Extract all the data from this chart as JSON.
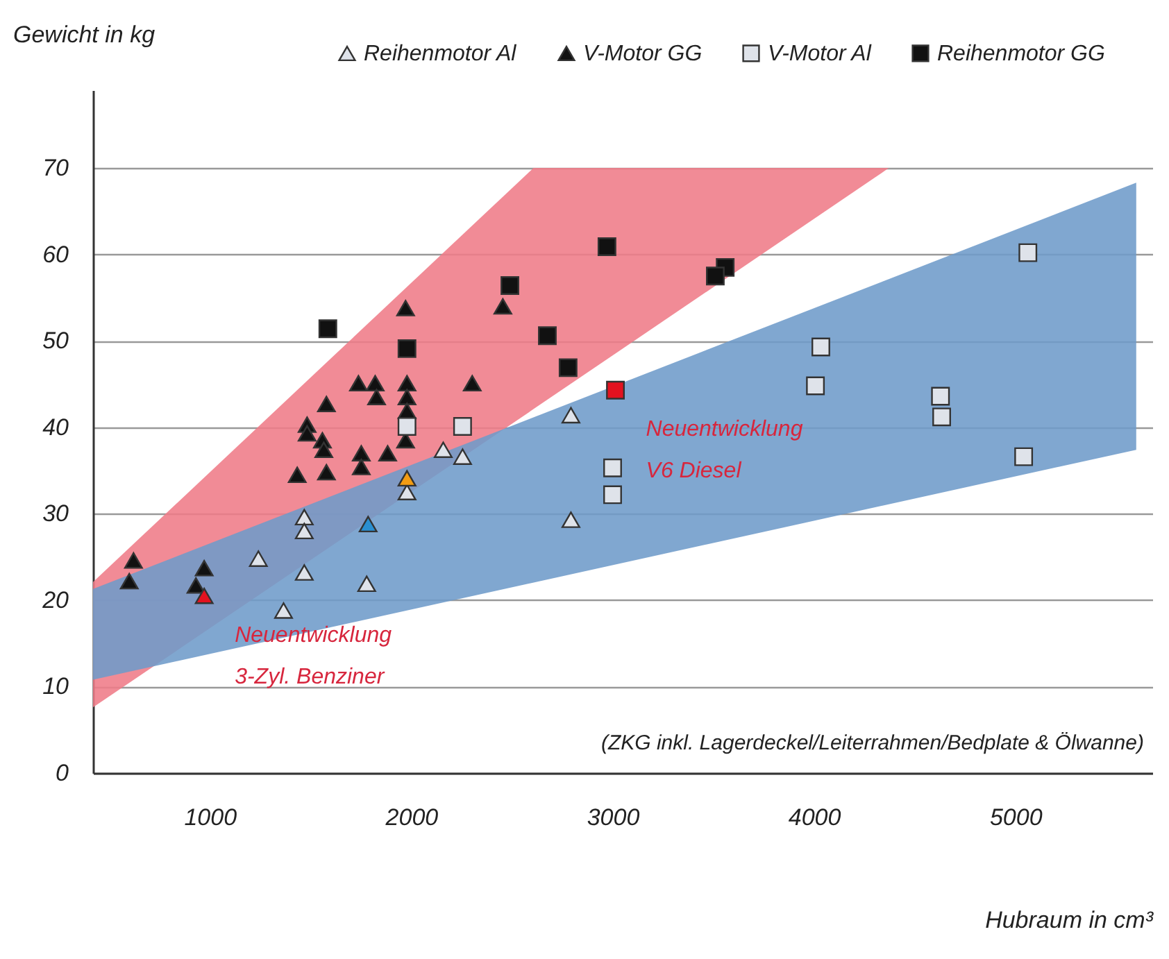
{
  "chart_data": {
    "type": "scatter",
    "xlabel": "Hubraum in cm³",
    "ylabel": "Gewicht in kg",
    "xlim": [
      420,
      5680
    ],
    "ylim": [
      0,
      79
    ],
    "xticks": [
      {
        "value": 1000,
        "label": "1000"
      },
      {
        "value": 2000,
        "label": "2000"
      },
      {
        "value": 3000,
        "label": "3000"
      },
      {
        "value": 4000,
        "label": "4000"
      },
      {
        "value": 5000,
        "label": "5000"
      }
    ],
    "yticks": [
      0,
      10,
      20,
      30,
      40,
      50,
      60,
      70
    ],
    "grid": "y",
    "legend": "top",
    "series": [
      {
        "type": "area",
        "color": "#ef7b88",
        "x": [
          420,
          2607,
          4372
        ],
        "values": [
          null,
          null,
          null
        ],
        "lower": [
          7.6,
          42.1,
          70
        ],
        "upper": [
          22.1,
          70,
          70
        ]
      },
      {
        "type": "area",
        "color": "#6e9bc9",
        "x": [
          420,
          5600
        ],
        "values": [
          null,
          null
        ],
        "lower": [
          10.8,
          37.4
        ],
        "upper": [
          21.3,
          68.3
        ]
      },
      {
        "name": "Reihenmotor Al",
        "color": "#dfe3ea",
        "marker": "triangle",
        "x": [
          2159,
          2255,
          1469,
          1469,
          1241,
          1469,
          1779,
          1366,
          1979,
          2793,
          2793
        ],
        "values": [
          37.4,
          36.6,
          29.6,
          28.0,
          24.8,
          23.2,
          21.9,
          18.8,
          32.5,
          41.4,
          29.3
        ]
      },
      {
        "name": "V-Motor GG",
        "color": "#111111",
        "marker": "triangle",
        "x": [
          1972,
          2455,
          1738,
          1821,
          1828,
          1979,
          1979,
          1979,
          2303,
          1579,
          1483,
          1483,
          1559,
          1566,
          1752,
          1752,
          1883,
          1972,
          1434,
          1579,
          621,
          600,
          972,
          931
        ],
        "values": [
          53.8,
          54.0,
          45.1,
          45.1,
          43.5,
          45.1,
          43.5,
          41.9,
          45.1,
          42.7,
          40.3,
          39.3,
          38.5,
          37.4,
          37.0,
          35.4,
          37.0,
          38.5,
          34.5,
          34.8,
          24.6,
          22.2,
          23.7,
          21.7
        ]
      },
      {
        "name": "V-Motor Al",
        "color": "#dfe3ea",
        "marker": "square",
        "x": [
          1979,
          2255,
          5062,
          4034,
          4007,
          4628,
          4634,
          5041,
          3000,
          3000
        ],
        "values": [
          40.1,
          40.1,
          60.2,
          49.3,
          44.8,
          43.6,
          41.2,
          36.6,
          35.3,
          32.2
        ]
      },
      {
        "name": "Reihenmotor GG",
        "color": "#111111",
        "marker": "square",
        "x": [
          1586,
          1979,
          2490,
          2972,
          3559,
          3510,
          2676,
          2779
        ],
        "values": [
          51.4,
          49.1,
          56.4,
          60.9,
          58.5,
          57.5,
          50.6,
          46.9
        ]
      },
      {
        "color": "#f39c12",
        "marker": "triangle",
        "x": [
          1979
        ],
        "values": [
          34.1
        ]
      },
      {
        "color": "#2a8fd0",
        "marker": "triangle",
        "x": [
          1786
        ],
        "values": [
          28.8
        ]
      },
      {
        "color": "#e3121f",
        "marker": "triangle",
        "x": [
          972
        ],
        "values": [
          20.5
        ]
      },
      {
        "color": "#e3121f",
        "marker": "square",
        "x": [
          3014
        ],
        "values": [
          44.3
        ]
      }
    ],
    "annotations": [
      {
        "text": "Neuentwicklung\n3-Zyl. Benziner",
        "x": 972,
        "y": 20.5
      },
      {
        "text": "Neuentwicklung\nV6 Diesel",
        "x": 3014,
        "y": 44.3
      },
      "(ZKG inkl. Lagerdeckel/Leiterrahmen/Bedplate & Ölwanne)"
    ]
  }
}
